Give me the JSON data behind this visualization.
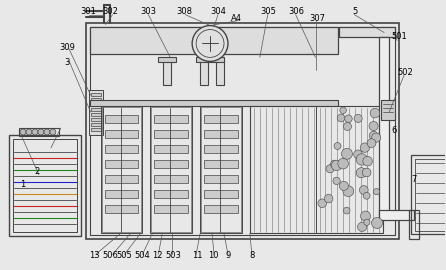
{
  "bg_color": "#e8e8e8",
  "lc": "#444444",
  "fig_width": 4.46,
  "fig_height": 2.7,
  "dpi": 100
}
